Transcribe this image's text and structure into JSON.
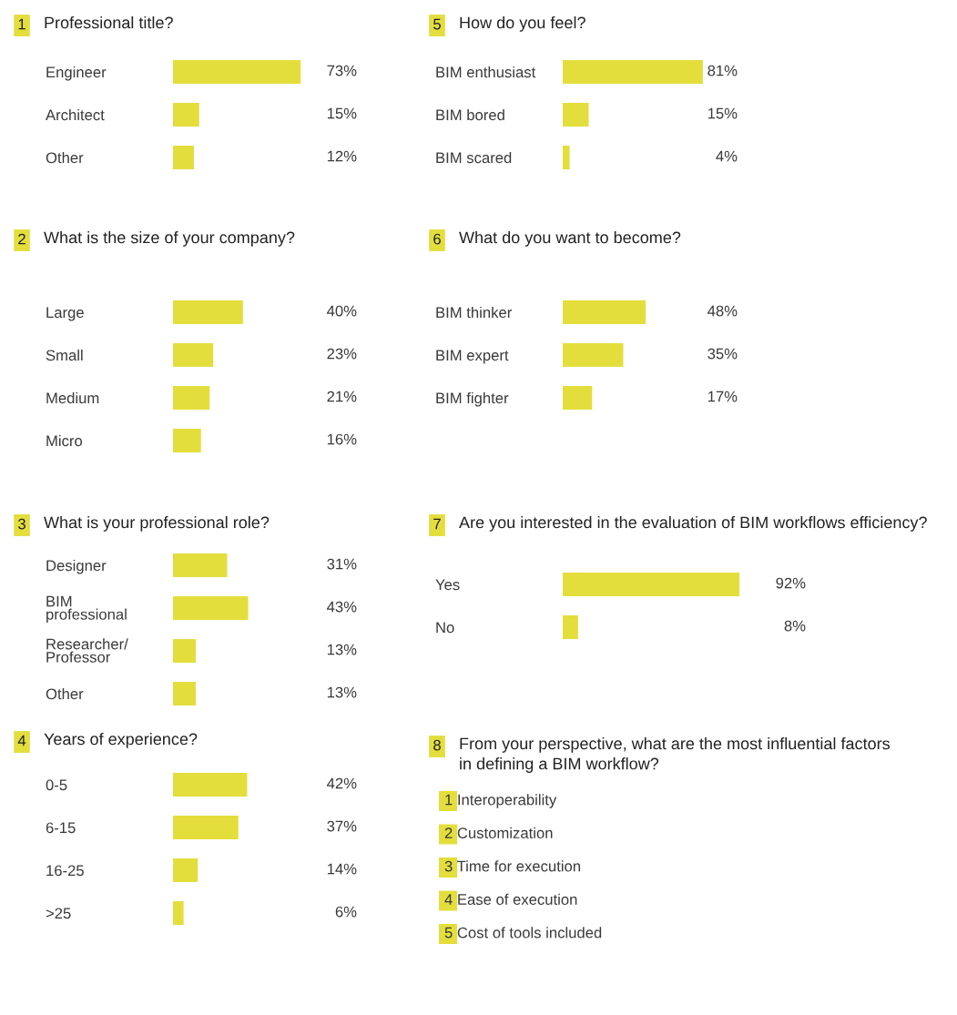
{
  "chart_data": [
    {
      "type": "bar",
      "orientation": "horizontal",
      "title": "Professional title?",
      "annotations": [
        "1"
      ],
      "categories": [
        "Engineer",
        "Architect",
        "Other"
      ],
      "values": [
        73,
        15,
        12
      ],
      "color": "#e3de3c",
      "value_labels": [
        "73%",
        "15%",
        "12%"
      ]
    },
    {
      "type": "bar",
      "orientation": "horizontal",
      "title": "What is the size of your company?",
      "annotations": [
        "2"
      ],
      "categories": [
        "Large",
        "Small",
        "Medium",
        "Micro"
      ],
      "values": [
        40,
        23,
        21,
        16
      ],
      "color": "#e3de3c",
      "value_labels": [
        "40%",
        "23%",
        "21%",
        "16%"
      ]
    },
    {
      "type": "bar",
      "orientation": "horizontal",
      "title": "What is your professional role?",
      "annotations": [
        "3"
      ],
      "categories": [
        "Designer",
        "BIM\nprofessional",
        "Researcher/\nProfessor",
        "Other"
      ],
      "values": [
        31,
        43,
        13,
        13
      ],
      "color": "#e3de3c",
      "value_labels": [
        "31%",
        "43%",
        "13%",
        "13%"
      ]
    },
    {
      "type": "bar",
      "orientation": "horizontal",
      "title": "Years of experience?",
      "annotations": [
        "4"
      ],
      "categories": [
        "0-5",
        "6-15",
        "16-25",
        ">25"
      ],
      "values": [
        42,
        37,
        14,
        6
      ],
      "color": "#e3de3c",
      "value_labels": [
        "42%",
        "37%",
        "14%",
        "6%"
      ]
    },
    {
      "type": "bar",
      "orientation": "horizontal",
      "title": "How do you feel?",
      "annotations": [
        "5"
      ],
      "categories": [
        "BIM enthusiast",
        "BIM bored",
        "BIM scared"
      ],
      "values": [
        81,
        15,
        4
      ],
      "color": "#e3de3c",
      "value_labels": [
        "81%",
        "15%",
        "4%"
      ]
    },
    {
      "type": "bar",
      "orientation": "horizontal",
      "title": "What do you want to become?",
      "annotations": [
        "6"
      ],
      "categories": [
        "BIM thinker",
        "BIM expert",
        "BIM fighter"
      ],
      "values": [
        48,
        35,
        17
      ],
      "color": "#e3de3c",
      "value_labels": [
        "48%",
        "35%",
        "17%"
      ]
    },
    {
      "type": "bar",
      "orientation": "horizontal",
      "title": "Are you interested in the evaluation of BIM workflows efficiency?",
      "annotations": [
        "7"
      ],
      "categories": [
        "Yes",
        "No"
      ],
      "values": [
        92,
        8
      ],
      "color": "#e3de3c",
      "value_labels": [
        "92%",
        "8%"
      ]
    },
    {
      "type": "other",
      "title": "From your perspective, what are the most influential factors\nin defining a BIM workflow?",
      "annotations": [
        "8",
        "1 Interoperability",
        "2 Customization",
        "3 Time for execution",
        "4 Ease of execution",
        "5 Cost of tools included"
      ]
    }
  ]
}
